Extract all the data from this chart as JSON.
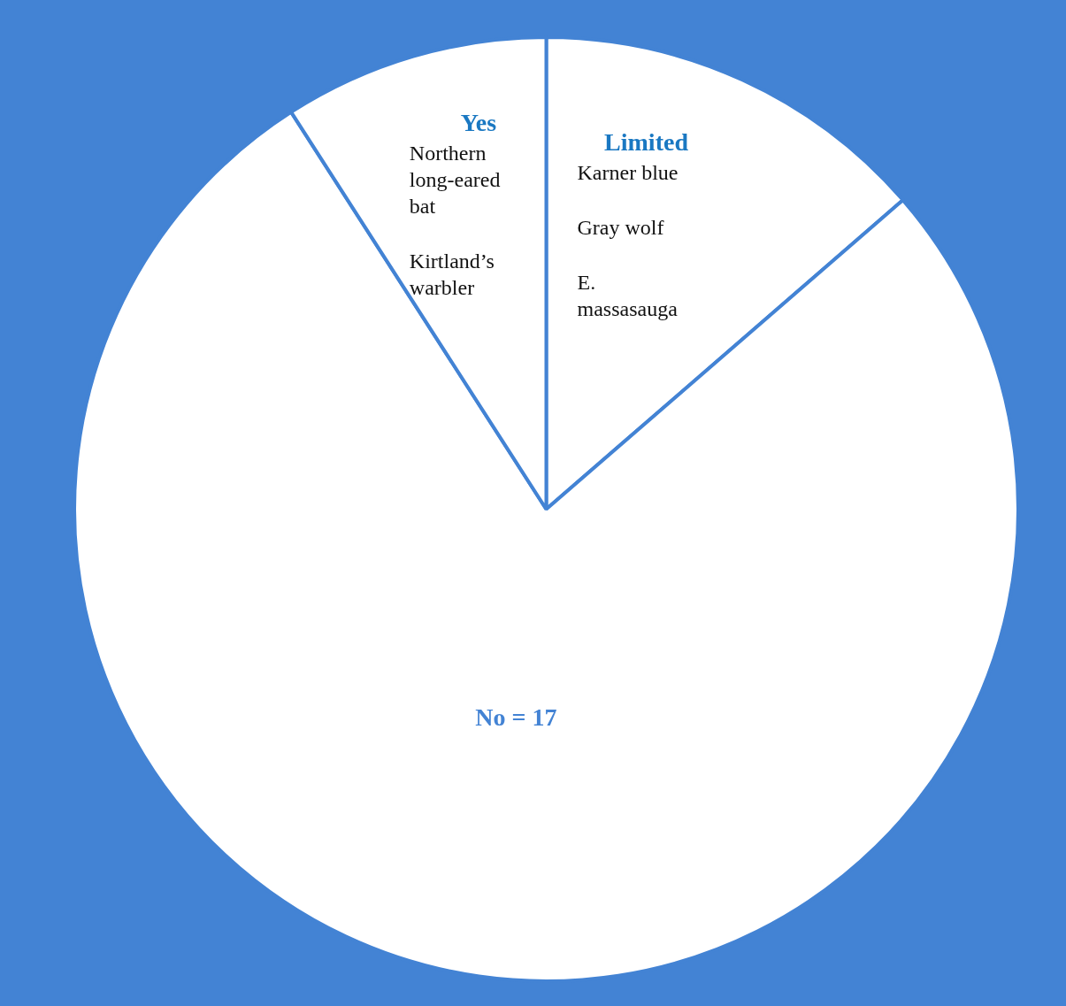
{
  "chart_data": {
    "type": "pie",
    "categories": [
      "Limited",
      "No = 17",
      "Yes"
    ],
    "values": [
      3,
      17,
      2
    ],
    "colors": [
      "#ffffff",
      "#ffffff",
      "#ffffff"
    ],
    "annotations": [
      {
        "text": "Karner blue",
        "x": "Limited"
      },
      {
        "text": "Gray wolf",
        "x": "Limited"
      },
      {
        "text": "E. massasauga",
        "x": "Limited"
      },
      {
        "text": "Northern long-eared bat",
        "x": "Yes"
      },
      {
        "text": "Kirtland’s warbler",
        "x": "Yes"
      }
    ]
  }
}
